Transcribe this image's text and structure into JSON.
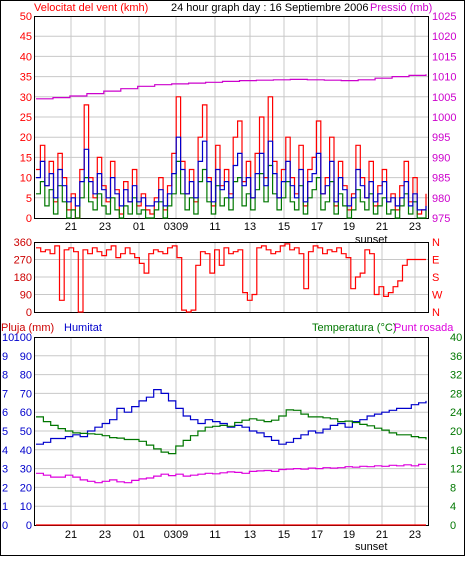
{
  "colors": {
    "frame": "#000000",
    "grid": "#c8c8c8",
    "red": "#ff0000",
    "dark_red": "#cc0000",
    "blue": "#0000cc",
    "green": "#007700",
    "magenta": "#dd00dd",
    "purple": "#cc00cc",
    "pink": "#ff66cc"
  },
  "header": {
    "wind_label": "Velocitat del vent (kmh)",
    "title": "24 hour graph day : 16 Septiembre 2006",
    "pressure_label": "Pressió (mb)"
  },
  "panel_bottom": {
    "rain_label": "Pluja (mm)",
    "humidity_label": "Humitat",
    "temperature_label": "Temperatura (°C)",
    "dewpoint_label": "Punt rosada"
  },
  "x_axis": {
    "ticks": [
      "21",
      "23",
      "01",
      "0309",
      "11",
      "13",
      "15",
      "17",
      "19",
      "21",
      "23"
    ],
    "sunset_label": "sunset"
  },
  "chart_data": [
    {
      "type": "line",
      "id": "wind_pressure",
      "y_left": {
        "label": "Velocitat del vent (kmh)",
        "ticks": [
          "0",
          "5",
          "10",
          "15",
          "20",
          "25",
          "30",
          "35",
          "40",
          "45",
          "50"
        ],
        "range": [
          0,
          50
        ]
      },
      "y_right": {
        "label": "Pressió (mb)",
        "ticks": [
          "975",
          "980",
          "985",
          "990",
          "995",
          "1000",
          "1005",
          "1010",
          "1015",
          "1020",
          "1025"
        ],
        "range": [
          975,
          1025
        ]
      },
      "series": [
        {
          "name": "",
          "color": "red",
          "values": [
            12,
            18,
            8,
            14,
            4,
            16,
            10,
            2,
            6,
            0,
            12,
            28,
            10,
            5,
            15,
            8,
            4,
            14,
            7,
            1,
            9,
            4,
            12,
            3,
            6,
            2,
            1,
            5,
            10,
            2,
            8,
            16,
            30,
            14,
            6,
            12,
            4,
            20,
            28,
            10,
            3,
            18,
            8,
            12,
            6,
            20,
            24,
            9,
            14,
            5,
            16,
            25,
            10,
            30,
            14,
            5,
            12,
            20,
            10,
            6,
            18,
            3,
            12,
            15,
            24,
            6,
            10,
            20,
            3,
            14,
            8,
            2,
            6,
            18,
            10,
            5,
            14,
            3,
            8,
            12,
            4,
            6,
            2,
            8,
            14,
            4,
            10,
            1,
            2,
            6
          ]
        },
        {
          "name": "",
          "color": "green",
          "values": [
            6,
            9,
            3,
            7,
            1,
            8,
            4,
            0,
            2,
            0,
            5,
            10,
            4,
            2,
            6,
            3,
            1,
            5,
            2,
            0,
            3,
            1,
            5,
            1,
            2,
            0,
            0,
            2,
            4,
            0,
            3,
            6,
            14,
            6,
            2,
            5,
            1,
            9,
            12,
            4,
            1,
            8,
            3,
            5,
            2,
            9,
            10,
            3,
            6,
            2,
            7,
            11,
            4,
            13,
            6,
            2,
            5,
            9,
            4,
            2,
            8,
            1,
            5,
            7,
            10,
            2,
            4,
            9,
            1,
            6,
            3,
            0,
            2,
            7,
            4,
            2,
            6,
            1,
            3,
            5,
            1,
            2,
            0,
            3,
            6,
            1,
            4,
            0,
            0,
            2
          ]
        },
        {
          "name": "",
          "color": "blue",
          "values": [
            10,
            14,
            8,
            11,
            5,
            12,
            8,
            4,
            5,
            3,
            9,
            17,
            9,
            6,
            11,
            7,
            5,
            10,
            6,
            3,
            7,
            4,
            8,
            4,
            5,
            3,
            3,
            4,
            7,
            3,
            6,
            11,
            20,
            12,
            6,
            9,
            5,
            14,
            19,
            9,
            4,
            12,
            7,
            9,
            5,
            13,
            16,
            8,
            10,
            5,
            11,
            16,
            8,
            19,
            11,
            5,
            9,
            14,
            8,
            5,
            12,
            4,
            9,
            11,
            16,
            6,
            8,
            14,
            4,
            10,
            7,
            3,
            5,
            12,
            8,
            5,
            9,
            4,
            6,
            9,
            4,
            5,
            3,
            5,
            9,
            3,
            6,
            2,
            2,
            3
          ]
        },
        {
          "name": "",
          "color": "purple",
          "values": [
            1004.5,
            1004.8,
            1005.2,
            1005.8,
            1006.4,
            1007.0,
            1007.6,
            1008.0,
            1008.2,
            1008.4,
            1008.6,
            1008.8,
            1009.0,
            1009.1,
            1009.2,
            1009.3,
            1009.2,
            1009.1,
            1009.0,
            1009.2,
            1009.6,
            1010.0,
            1010.3,
            1010.6
          ]
        }
      ]
    },
    {
      "type": "line",
      "id": "wind_direction",
      "y_left": {
        "ticks": [
          "0",
          "90",
          "180",
          "270",
          "360"
        ],
        "range": [
          0,
          360
        ]
      },
      "y_right": {
        "ticks": [
          "N",
          "W",
          "S",
          "E",
          "N"
        ]
      },
      "series": [
        {
          "name": "",
          "color": "red",
          "values": [
            330,
            310,
            320,
            300,
            340,
            60,
            320,
            330,
            310,
            0,
            320,
            300,
            330,
            310,
            290,
            320,
            340,
            280,
            300,
            330,
            300,
            280,
            250,
            200,
            300,
            320,
            310,
            300,
            330,
            340,
            280,
            10,
            0,
            10,
            240,
            310,
            300,
            200,
            320,
            240,
            330,
            300,
            310,
            320,
            100,
            60,
            90,
            330,
            340,
            320,
            300,
            310,
            340,
            350,
            320,
            330,
            300,
            120,
            310,
            340,
            330,
            300,
            320,
            310,
            330,
            300,
            280,
            120,
            180,
            200,
            320,
            300,
            90,
            130,
            80,
            100,
            130,
            160,
            240,
            270,
            270,
            270,
            270,
            270
          ]
        }
      ]
    },
    {
      "type": "line",
      "id": "rain_humidity_temp",
      "y_left_rain": {
        "label": "Pluja (mm)",
        "ticks": [
          "0",
          "1",
          "2",
          "3",
          "4",
          "5",
          "6",
          "7",
          "8",
          "9",
          "10"
        ],
        "range": [
          0,
          10
        ]
      },
      "y_left_humidity": {
        "label": "Humitat",
        "ticks": [
          "0",
          "10",
          "20",
          "30",
          "40",
          "50",
          "60",
          "70",
          "80",
          "90",
          "100"
        ],
        "range": [
          0,
          100
        ]
      },
      "y_right": {
        "label": "Temperatura (°C)",
        "ticks": [
          "0",
          "4",
          "8",
          "12",
          "16",
          "20",
          "24",
          "28",
          "32",
          "36",
          "40"
        ],
        "range": [
          0,
          40
        ]
      },
      "series": [
        {
          "name": "Humitat",
          "color": "blue",
          "values": [
            43,
            44,
            46,
            46,
            47,
            48,
            47,
            50,
            52,
            54,
            56,
            62,
            60,
            63,
            66,
            68,
            72,
            70,
            66,
            62,
            58,
            56,
            54,
            56,
            55,
            54,
            52,
            53,
            52,
            50,
            49,
            47,
            45,
            43,
            44,
            46,
            48,
            50,
            49,
            51,
            53,
            54,
            52,
            55,
            56,
            58,
            59,
            60,
            61,
            62,
            62,
            64,
            65,
            66
          ]
        },
        {
          "name": "Temperatura (°C)",
          "color": "green",
          "values": [
            23.0,
            22.0,
            21.2,
            20.5,
            20.0,
            19.6,
            19.5,
            19.4,
            19.3,
            19.0,
            18.6,
            18.5,
            18.2,
            18.2,
            17.8,
            17.0,
            16.2,
            15.5,
            15.2,
            16.8,
            18.0,
            19.0,
            20.0,
            20.8,
            21.0,
            21.2,
            21.0,
            21.8,
            22.3,
            22.6,
            22.3,
            22.0,
            22.3,
            23.2,
            24.5,
            24.4,
            23.6,
            23.0,
            23.0,
            22.8,
            22.6,
            22.0,
            22.1,
            21.8,
            21.4,
            21.1,
            20.6,
            20.2,
            19.6,
            19.2,
            19.2,
            18.8,
            18.6,
            18.2
          ]
        },
        {
          "name": "Punt rosada",
          "color": "magenta",
          "values": [
            11.0,
            10.6,
            10.2,
            10.2,
            10.6,
            10.2,
            9.6,
            9.3,
            9.0,
            9.3,
            9.6,
            9.2,
            9.0,
            9.5,
            9.8,
            10.0,
            10.4,
            10.8,
            10.5,
            10.8,
            10.4,
            10.6,
            10.8,
            11.0,
            10.9,
            11.1,
            11.3,
            11.2,
            11.0,
            11.4,
            11.5,
            11.6,
            11.4,
            11.8,
            11.9,
            12.0,
            11.9,
            12.1,
            12.0,
            12.2,
            12.1,
            12.2,
            12.4,
            12.3,
            12.5,
            12.4,
            12.6,
            12.5,
            12.7,
            12.6,
            12.8,
            12.6,
            12.9,
            12.9
          ]
        },
        {
          "name": "Pluja (mm)",
          "color": "red",
          "values": [
            0,
            0,
            0,
            0,
            0,
            0,
            0,
            0,
            0,
            0,
            0,
            0
          ]
        }
      ]
    }
  ]
}
